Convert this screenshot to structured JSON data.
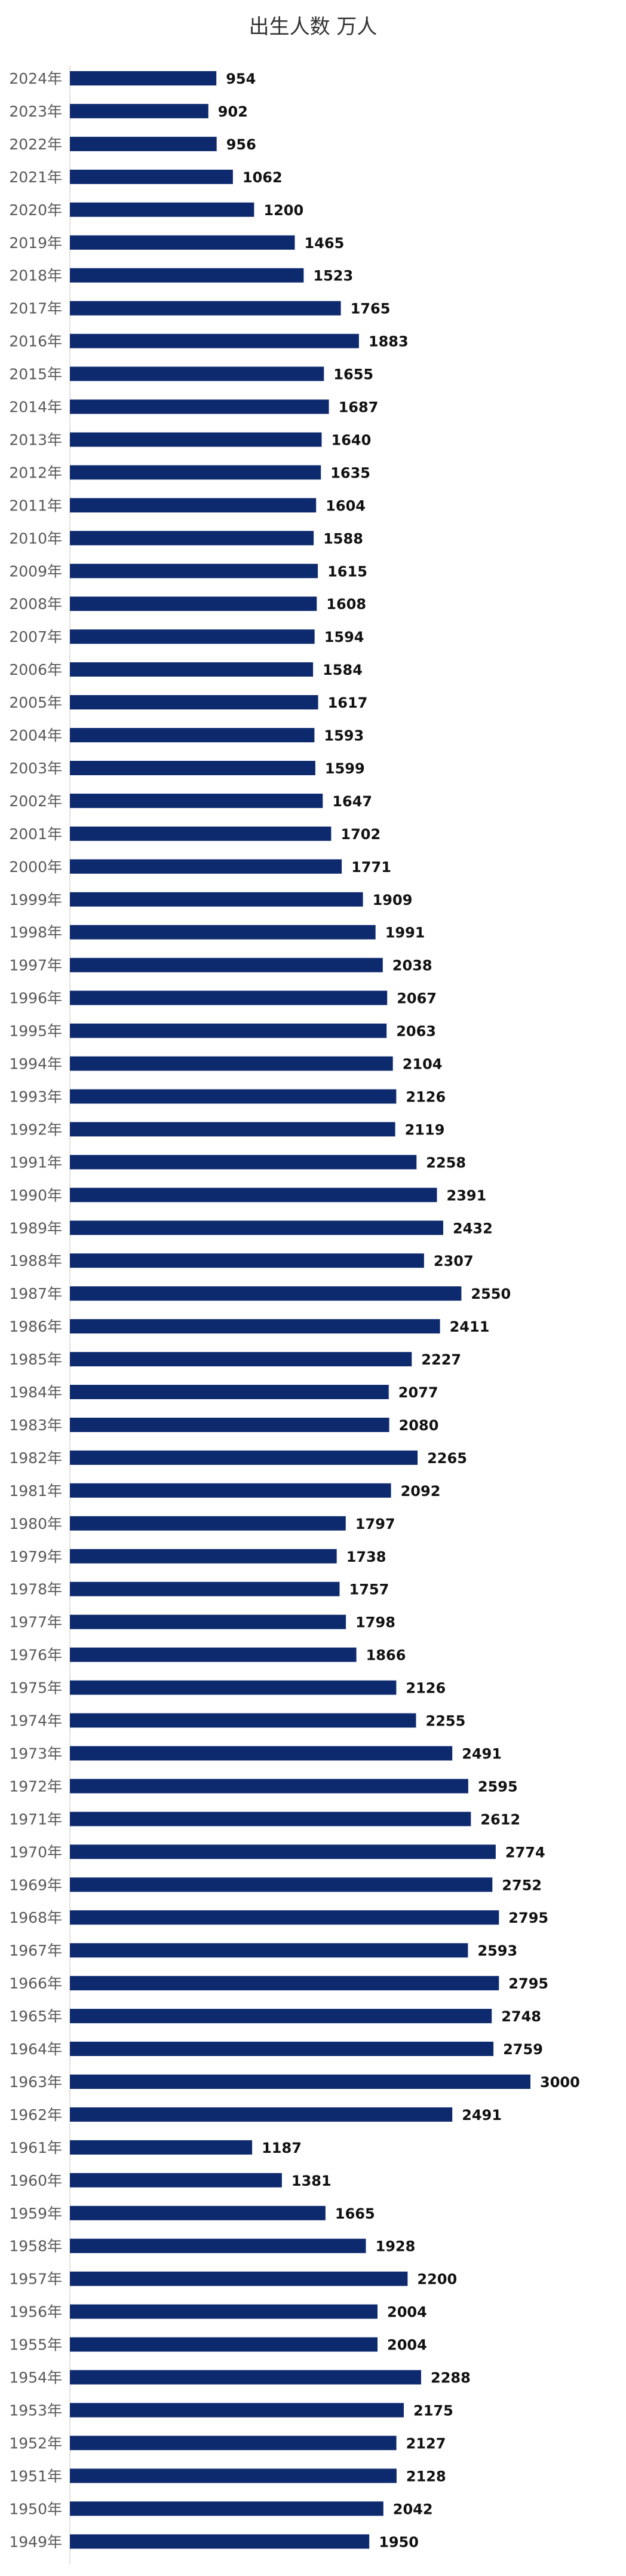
{
  "chart_data": {
    "type": "bar",
    "orientation": "horizontal",
    "title": "出生人数 万人",
    "xlabel": "",
    "ylabel": "",
    "xlim": [
      0,
      3000
    ],
    "grid": false,
    "legend": "none",
    "colors": {
      "bar": "#0e2a6e",
      "axis": "#d9d9d9"
    },
    "categories": [
      "2024年",
      "2023年",
      "2022年",
      "2021年",
      "2020年",
      "2019年",
      "2018年",
      "2017年",
      "2016年",
      "2015年",
      "2014年",
      "2013年",
      "2012年",
      "2011年",
      "2010年",
      "2009年",
      "2008年",
      "2007年",
      "2006年",
      "2005年",
      "2004年",
      "2003年",
      "2002年",
      "2001年",
      "2000年",
      "1999年",
      "1998年",
      "1997年",
      "1996年",
      "1995年",
      "1994年",
      "1993年",
      "1992年",
      "1991年",
      "1990年",
      "1989年",
      "1988年",
      "1987年",
      "1986年",
      "1985年",
      "1984年",
      "1983年",
      "1982年",
      "1981年",
      "1980年",
      "1979年",
      "1978年",
      "1977年",
      "1976年",
      "1975年",
      "1974年",
      "1973年",
      "1972年",
      "1971年",
      "1970年",
      "1969年",
      "1968年",
      "1967年",
      "1966年",
      "1965年",
      "1964年",
      "1963年",
      "1962年",
      "1961年",
      "1960年",
      "1959年",
      "1958年",
      "1957年",
      "1956年",
      "1955年",
      "1954年",
      "1953年",
      "1952年",
      "1951年",
      "1950年",
      "1949年"
    ],
    "values": [
      954,
      902,
      956,
      1062,
      1200,
      1465,
      1523,
      1765,
      1883,
      1655,
      1687,
      1640,
      1635,
      1604,
      1588,
      1615,
      1608,
      1594,
      1584,
      1617,
      1593,
      1599,
      1647,
      1702,
      1771,
      1909,
      1991,
      2038,
      2067,
      2063,
      2104,
      2126,
      2119,
      2258,
      2391,
      2432,
      2307,
      2550,
      2411,
      2227,
      2077,
      2080,
      2265,
      2092,
      1797,
      1738,
      1757,
      1798,
      1866,
      2126,
      2255,
      2491,
      2595,
      2612,
      2774,
      2752,
      2795,
      2593,
      2795,
      2748,
      2759,
      3000,
      2491,
      1187,
      1381,
      1665,
      1928,
      2200,
      2004,
      2004,
      2288,
      2175,
      2127,
      2128,
      2042,
      1950
    ]
  }
}
